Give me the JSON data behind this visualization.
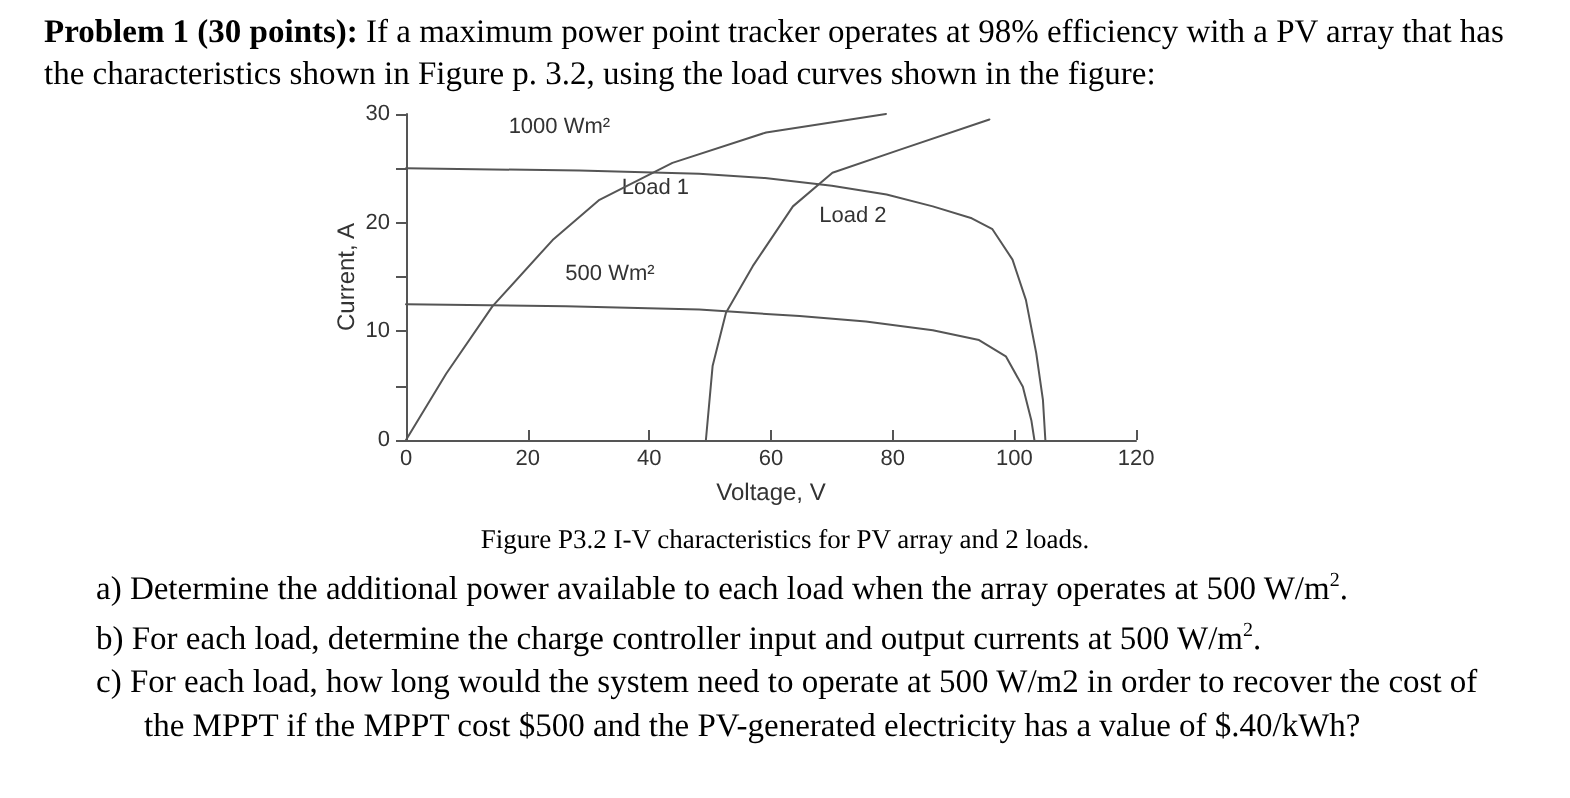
{
  "chart_data": {
    "type": "line",
    "title": "Problem 1 (30 points):",
    "subtitle": "If a maximum power point tracker operates at 98% efficiency with a PV array that has the characteristics shown in Figure p. 3.2, using the load curves shown in the figure:",
    "xlabel": "Voltage, V",
    "ylabel": "Current, A",
    "xlim": [
      0,
      120
    ],
    "xticks": [
      0,
      20,
      40,
      60,
      80,
      100,
      120
    ],
    "ylim": [
      0,
      30
    ],
    "yticks": [
      0,
      {
        "value": 5,
        "label": null
      },
      10,
      {
        "value": 15,
        "label": null
      },
      20,
      {
        "value": 25,
        "label": null
      },
      30
    ],
    "grid": false,
    "marker": "none",
    "line_style": "solid",
    "series": [
      {
        "name": "1000 Wm²",
        "color": "#555555",
        "x": [
          0,
          28.5,
          48.2,
          59,
          70,
          79,
          86.6,
          93,
          96.4,
          99.7,
          101.9,
          103.6,
          104.7,
          105.1
        ],
        "values": [
          25.0,
          24.8,
          24.5,
          24.1,
          23.4,
          22.6,
          21.5,
          20.4,
          19.4,
          16.6,
          12.9,
          8.0,
          3.7,
          0
        ]
      },
      {
        "name": "500 Wm²",
        "color": "#555555",
        "x": [
          0,
          26.3,
          48.2,
          64.7,
          75.6,
          86.6,
          94.2,
          98.6,
          101.4,
          102.8,
          103.3
        ],
        "values": [
          12.5,
          12.3,
          12.0,
          11.4,
          10.9,
          10.1,
          9.2,
          7.7,
          4.9,
          1.8,
          0
        ]
      },
      {
        "name": "Load 1",
        "color": "#555555",
        "x": [
          0,
          6.6,
          14.2,
          24.1,
          31.8,
          43.8,
          59.2,
          78.9
        ],
        "values": [
          0,
          6.1,
          12.3,
          18.4,
          22.1,
          25.5,
          28.3,
          30.0
        ]
      },
      {
        "name": "Load 2",
        "color": "#555555",
        "x": [
          49.3,
          50.4,
          52.6,
          57,
          63.6,
          70.1,
          81.1,
          95.9
        ],
        "values": [
          0,
          6.8,
          11.7,
          16.0,
          21.5,
          24.6,
          26.7,
          29.5
        ]
      }
    ],
    "annotations": [
      "Figure P3.2 I-V characteristics for PV array and 2 loads.",
      "a) Determine the additional power available to each load when the array operates at 500 W/m$^{2}$.",
      "b) For each load, determine the charge controller input and output currents at 500 W/m$^{2}$.",
      "c) For each load, how long would the system need to operate at 500 W/m2 in order to recover the cost of the MPPT if the MPPT cost $500 and the PV-generated electricity has a value of $.40/kWh?"
    ]
  }
}
